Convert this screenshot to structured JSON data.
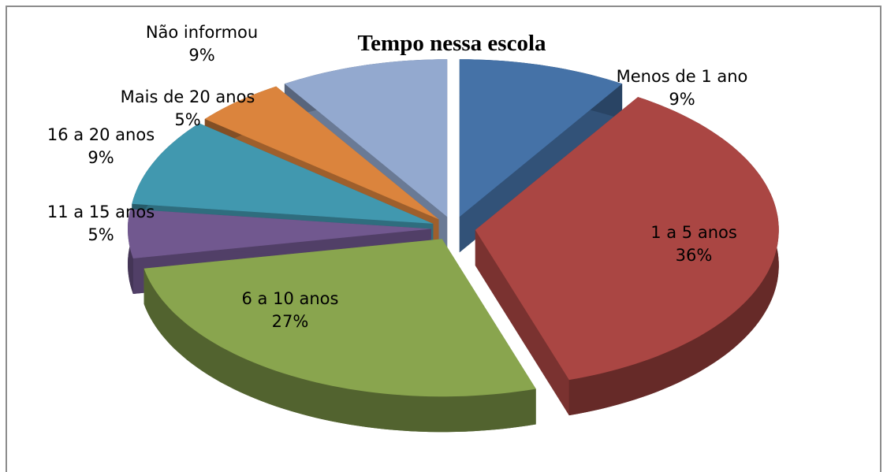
{
  "chart_data": {
    "type": "pie",
    "title": "Tempo nessa escola",
    "categories": [
      "Menos de 1 ano",
      "1 a 5 anos",
      "6 a 10 anos",
      "11 a 15 anos",
      "16 a 20 anos",
      "Mais de 20 anos",
      "Não informou"
    ],
    "values": [
      9,
      36,
      27,
      5,
      9,
      5,
      9
    ],
    "value_labels": [
      "9%",
      "36%",
      "27%",
      "5%",
      "9%",
      "5%",
      "9%"
    ],
    "colors": [
      "#4572a7",
      "#aa4643",
      "#89a54e",
      "#71588f",
      "#4198af",
      "#db843d",
      "#93a9cf"
    ]
  }
}
